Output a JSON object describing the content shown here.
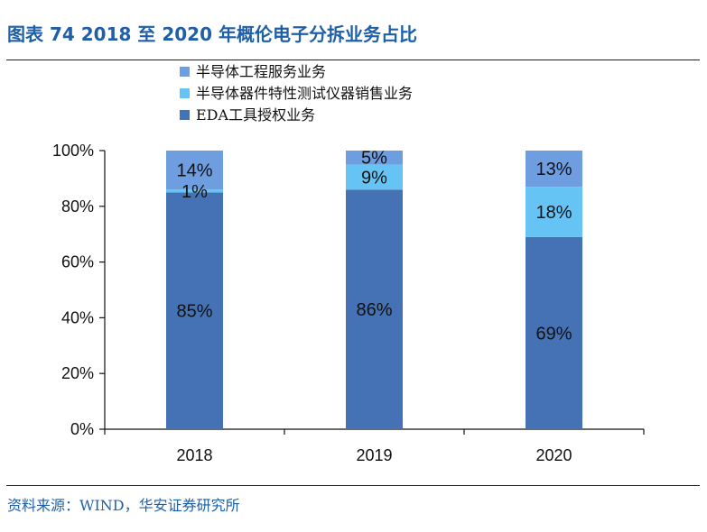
{
  "header": {
    "title": "图表 74 2018 至 2020 年概伦电子分拆业务占比"
  },
  "footer": {
    "source": "资料来源：WIND，华安证券研究所"
  },
  "chart_data": {
    "type": "bar",
    "stacked": true,
    "categories": [
      "2018",
      "2019",
      "2020"
    ],
    "series": [
      {
        "name": "EDA工具授权业务",
        "values": [
          85,
          86,
          69
        ],
        "labels": [
          "85%",
          "86%",
          "69%"
        ],
        "color": "#4472b4"
      },
      {
        "name": "半导体器件特性测试仪器销售业务",
        "values": [
          1,
          9,
          18
        ],
        "labels": [
          "1%",
          "9%",
          "18%"
        ],
        "color": "#66c4f5"
      },
      {
        "name": "半导体工程服务业务",
        "values": [
          14,
          5,
          13
        ],
        "labels": [
          "14%",
          "5%",
          "13%"
        ],
        "color": "#6f9ee0"
      }
    ],
    "legend_order": [
      "半导体工程服务业务",
      "半导体器件特性测试仪器销售业务",
      "EDA工具授权业务"
    ],
    "legend_position": "top",
    "y_ticks": [
      "0%",
      "20%",
      "40%",
      "60%",
      "80%",
      "100%"
    ],
    "ylim": [
      0,
      100
    ],
    "grid": false
  }
}
